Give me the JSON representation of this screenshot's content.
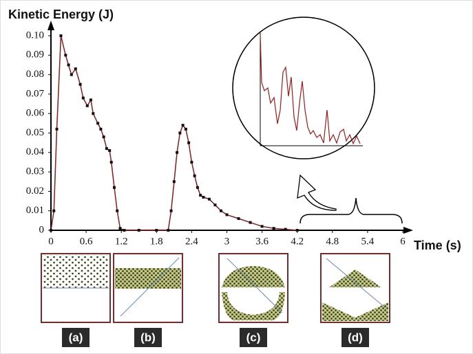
{
  "chart_data": {
    "type": "line",
    "title": "Kinetic Energy (J)",
    "xlabel": "Time (s)",
    "color": "#8b1a1a",
    "x": [
      0,
      0.05,
      0.1,
      0.17,
      0.25,
      0.3,
      0.35,
      0.42,
      0.5,
      0.55,
      0.62,
      0.68,
      0.72,
      0.8,
      0.85,
      0.9,
      0.95,
      1.0,
      1.03,
      1.08,
      1.13,
      1.18,
      1.25,
      1.5,
      1.8,
      2.0,
      2.05,
      2.1,
      2.15,
      2.2,
      2.25,
      2.3,
      2.35,
      2.4,
      2.45,
      2.5,
      2.55,
      2.6,
      2.7,
      2.8,
      2.9,
      3.0,
      3.2,
      3.4,
      3.6,
      3.8,
      4.0,
      4.2
    ],
    "values": [
      0,
      0.01,
      0.052,
      0.1,
      0.09,
      0.085,
      0.08,
      0.083,
      0.075,
      0.068,
      0.064,
      0.067,
      0.06,
      0.055,
      0.052,
      0.048,
      0.042,
      0.041,
      0.035,
      0.022,
      0.01,
      0.001,
      0,
      0,
      0,
      0,
      0.01,
      0.025,
      0.04,
      0.05,
      0.054,
      0.052,
      0.045,
      0.035,
      0.028,
      0.022,
      0.018,
      0.017,
      0.016,
      0.013,
      0.01,
      0.008,
      0.006,
      0.004,
      0.002,
      0.001,
      0.0005,
      0
    ],
    "xlim": [
      0,
      6
    ],
    "xticks": [
      0,
      0.6,
      1.2,
      1.8,
      2.4,
      3,
      3.6,
      4.2,
      4.8,
      5.4,
      6
    ],
    "ylim": [
      0,
      0.1
    ],
    "yticks": [
      0,
      0.01,
      0.02,
      0.03,
      0.04,
      0.05,
      0.06,
      0.07,
      0.08,
      0.09,
      {
        "value": 0.1,
        "label": "0.10"
      }
    ]
  },
  "panels": [
    "(a)",
    "(b)",
    "(c)",
    "(d)"
  ]
}
